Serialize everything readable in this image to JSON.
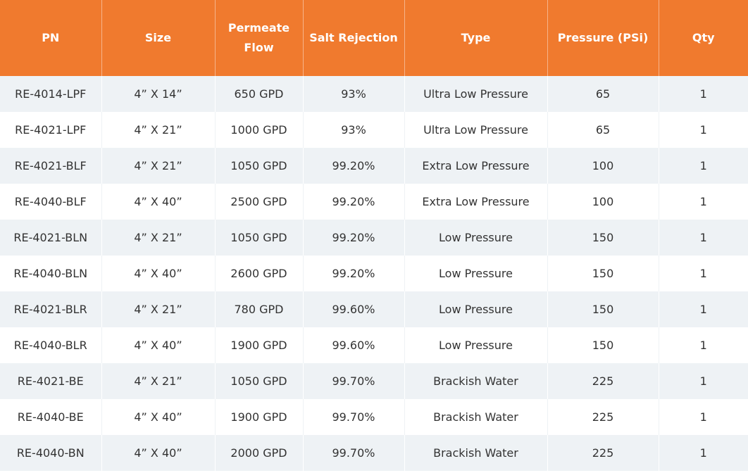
{
  "table": {
    "headers": [
      "PN",
      "Size",
      "Permeate Flow",
      "Salt Rejection",
      "Type",
      "Pressure (PSi)",
      "Qty"
    ],
    "rows": [
      [
        "RE-4014-LPF",
        "4” X 14”",
        "650 GPD",
        "93%",
        "Ultra Low Pressure",
        "65",
        "1"
      ],
      [
        "RE-4021-LPF",
        "4” X 21”",
        "1000 GPD",
        "93%",
        "Ultra Low Pressure",
        "65",
        "1"
      ],
      [
        "RE-4021-BLF",
        "4” X 21”",
        "1050 GPD",
        "99.20%",
        "Extra Low Pressure",
        "100",
        "1"
      ],
      [
        "RE-4040-BLF",
        "4” X 40”",
        "2500 GPD",
        "99.20%",
        "Extra Low Pressure",
        "100",
        "1"
      ],
      [
        "RE-4021-BLN",
        "4” X 21”",
        "1050 GPD",
        "99.20%",
        "Low Pressure",
        "150",
        "1"
      ],
      [
        "RE-4040-BLN",
        "4” X 40”",
        "2600 GPD",
        "99.20%",
        "Low Pressure",
        "150",
        "1"
      ],
      [
        "RE-4021-BLR",
        "4” X 21”",
        "780 GPD",
        "99.60%",
        "Low Pressure",
        "150",
        "1"
      ],
      [
        "RE-4040-BLR",
        "4” X 40”",
        "1900 GPD",
        "99.60%",
        "Low Pressure",
        "150",
        "1"
      ],
      [
        "RE-4021-BE",
        "4” X 21”",
        "1050 GPD",
        "99.70%",
        "Brackish Water",
        "225",
        "1"
      ],
      [
        "RE-4040-BE",
        "4” X 40”",
        "1900 GPD",
        "99.70%",
        "Brackish Water",
        "225",
        "1"
      ],
      [
        "RE-4040-BN",
        "4” X 40”",
        "2000 GPD",
        "99.70%",
        "Brackish Water",
        "225",
        "1"
      ]
    ]
  },
  "colors": {
    "header_background": "#f07a2e",
    "header_text": "#ffffff",
    "row_stripe": "#eef2f5",
    "row_plain": "#ffffff",
    "cell_text": "#333333"
  }
}
